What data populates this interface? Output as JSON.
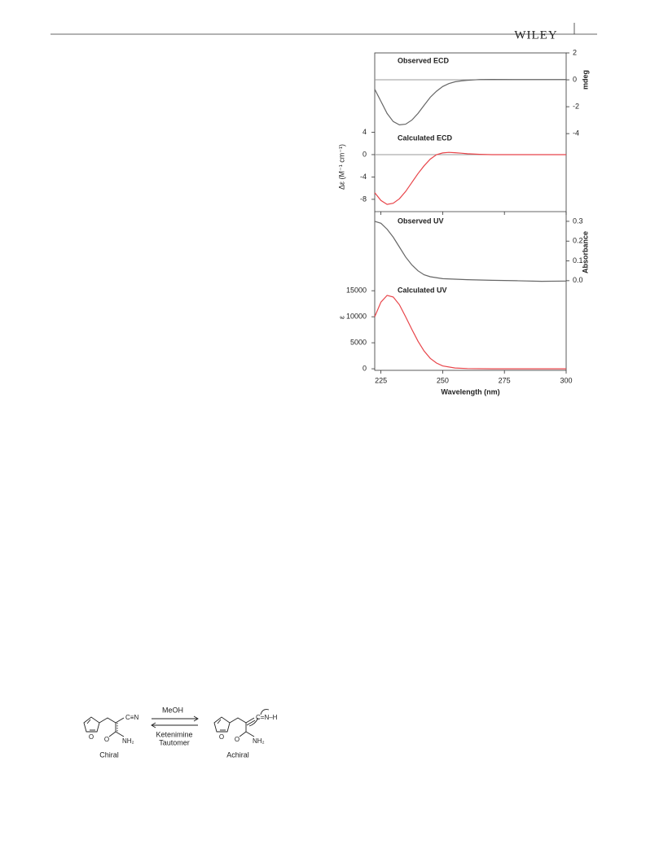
{
  "header": {
    "brand": "WILEY"
  },
  "chart_data": [
    {
      "type": "line",
      "title": "Observed ECD",
      "ylabel": "mdeg",
      "yaxis_side": "right",
      "zero_line": true,
      "color": "#666666",
      "xlim": [
        222.5,
        300
      ],
      "ylim": [
        -9.8,
        2
      ],
      "yticks": [
        2,
        0,
        -2,
        -4
      ],
      "x": [
        222.5,
        225,
        227.5,
        230,
        232.5,
        235,
        237.5,
        240,
        242.5,
        245,
        247.5,
        250,
        252.5,
        255,
        257.5,
        260,
        265,
        270,
        280,
        290,
        300
      ],
      "values": [
        -0.7,
        -1.6,
        -2.5,
        -3.1,
        -3.35,
        -3.3,
        -3.0,
        -2.5,
        -1.9,
        -1.3,
        -0.85,
        -0.5,
        -0.28,
        -0.15,
        -0.08,
        -0.04,
        0.02,
        0.03,
        0.02,
        0.02,
        0.02
      ]
    },
    {
      "type": "line",
      "title": "Calculated ECD",
      "ylabel": "Δε (M⁻¹ cm⁻¹)",
      "yaxis_side": "left",
      "zero_line": true,
      "color": "#e8454a",
      "xlim": [
        222.5,
        300
      ],
      "ylim": [
        -10.2,
        18.2
      ],
      "yticks": [
        4,
        0,
        -4,
        -8
      ],
      "x": [
        222.5,
        225,
        227.5,
        230,
        232.5,
        235,
        237.5,
        240,
        242.5,
        245,
        247.5,
        250,
        252.5,
        255,
        257.5,
        260,
        265,
        270,
        280,
        300
      ],
      "values": [
        -6.8,
        -8.2,
        -8.9,
        -8.7,
        -7.9,
        -6.6,
        -5.0,
        -3.4,
        -2.0,
        -0.8,
        0,
        0.3,
        0.4,
        0.35,
        0.25,
        0.15,
        0.05,
        0,
        0,
        0
      ]
    },
    {
      "type": "line",
      "title": "Observed UV",
      "ylabel": "Absorbance",
      "yaxis_side": "right",
      "zero_line": false,
      "color": "#666666",
      "xlim": [
        222.5,
        300
      ],
      "ylim": [
        -0.453,
        0.349
      ],
      "yticks": [
        0.3,
        0.2,
        0.1,
        {
          "value": 0,
          "label": "0.0"
        }
      ],
      "x": [
        222.5,
        225,
        227.5,
        230,
        232.5,
        235,
        237.5,
        240,
        242.5,
        245,
        250,
        260,
        270,
        280,
        290,
        300
      ],
      "values": [
        0.3,
        0.29,
        0.26,
        0.22,
        0.17,
        0.12,
        0.08,
        0.05,
        0.03,
        0.02,
        0.01,
        0.005,
        0.002,
        0,
        -0.003,
        -0.002
      ]
    },
    {
      "type": "line",
      "title": "Calculated UV",
      "ylabel": "ε",
      "yaxis_side": "left",
      "zero_line": false,
      "color": "#e8454a",
      "xlim": [
        222.5,
        300
      ],
      "ylim": [
        -300,
        30200
      ],
      "yticks": [
        15000,
        10000,
        5000,
        0
      ],
      "xlabel": "Wavelength (nm)",
      "xticks": [
        225,
        250,
        275,
        300
      ],
      "x": [
        222.5,
        225,
        227.5,
        230,
        232.5,
        235,
        237.5,
        240,
        242.5,
        245,
        247.5,
        250,
        255,
        260,
        270,
        300
      ],
      "values": [
        10000,
        12800,
        14100,
        13800,
        12300,
        10000,
        7600,
        5300,
        3400,
        2000,
        1100,
        550,
        150,
        40,
        0,
        0
      ]
    }
  ],
  "scheme": {
    "reagent": "MeOH",
    "condition": [
      "Ketenimine",
      "Tautomer"
    ],
    "left": {
      "label": "Chiral",
      "nitrile": "C≡N",
      "ring_o": "O",
      "carbonyl_o": "O",
      "amide": "NH₂"
    },
    "right": {
      "label": "Achiral",
      "imine": "C=N–H",
      "ring_o": "O",
      "carbonyl_o": "O",
      "amide": "NH₂"
    }
  }
}
